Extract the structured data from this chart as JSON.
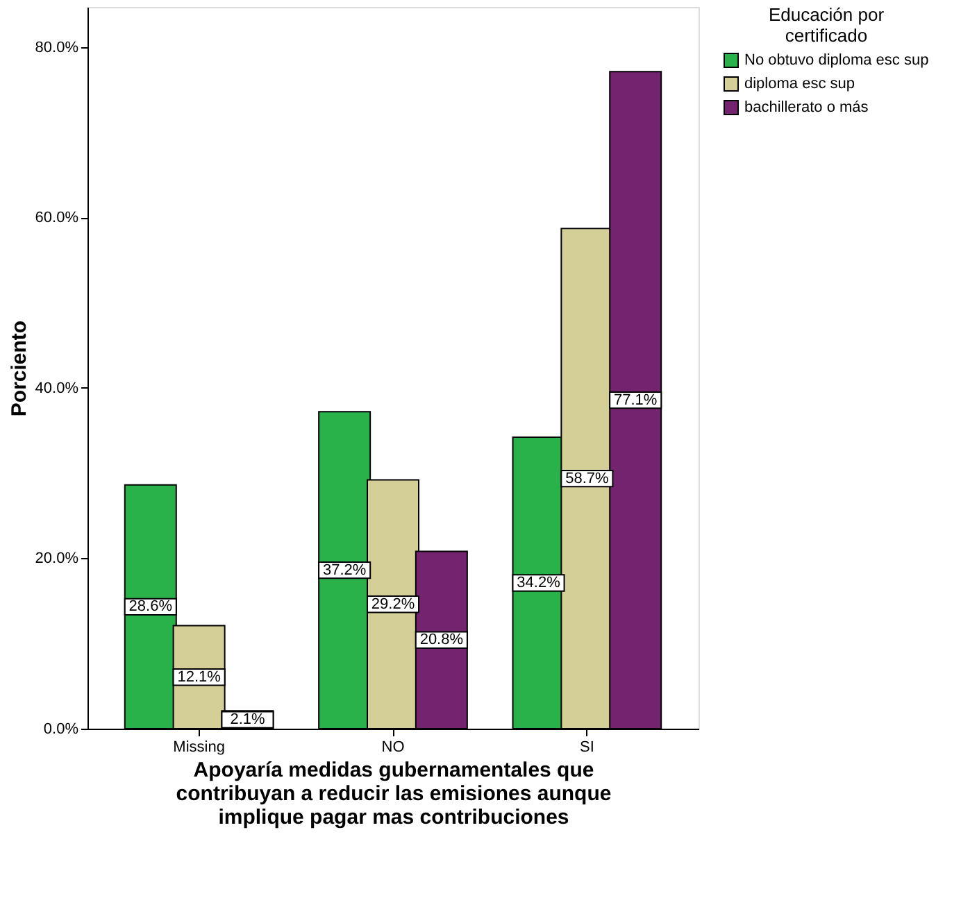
{
  "chart_data": {
    "type": "bar",
    "xlabel": "Apoyaría medidas gubernamentales que\ncontribuyan a reducir las emisiones aunque\nimplique pagar mas contribuciones",
    "ylabel": "Porciento",
    "legend_title": "Educación por\ncertificado",
    "categories": [
      "Missing",
      "NO",
      "SI"
    ],
    "series": [
      {
        "name": "No obtuvo diploma esc sup",
        "color": "#2ab24a",
        "values": [
          28.6,
          37.2,
          34.2
        ],
        "value_labels": [
          "28.6%",
          "37.2%",
          "34.2%"
        ]
      },
      {
        "name": "diploma esc sup",
        "color": "#d4cf96",
        "values": [
          12.1,
          29.2,
          58.7
        ],
        "value_labels": [
          "12.1%",
          "29.2%",
          "58.7%"
        ]
      },
      {
        "name": "bachillerato o más",
        "color": "#74246f",
        "values": [
          2.1,
          20.8,
          77.1
        ],
        "value_labels": [
          "2.1%",
          "20.8%",
          "77.1%"
        ]
      }
    ],
    "ylim": [
      0,
      84.7
    ],
    "yticks": [
      {
        "value": 0,
        "label": "0.0%"
      },
      {
        "value": 20,
        "label": "20.0%"
      },
      {
        "value": 40,
        "label": "40.0%"
      },
      {
        "value": 60,
        "label": "60.0%"
      },
      {
        "value": 80,
        "label": "80.0%"
      }
    ],
    "legend": "top right",
    "grid": false
  }
}
